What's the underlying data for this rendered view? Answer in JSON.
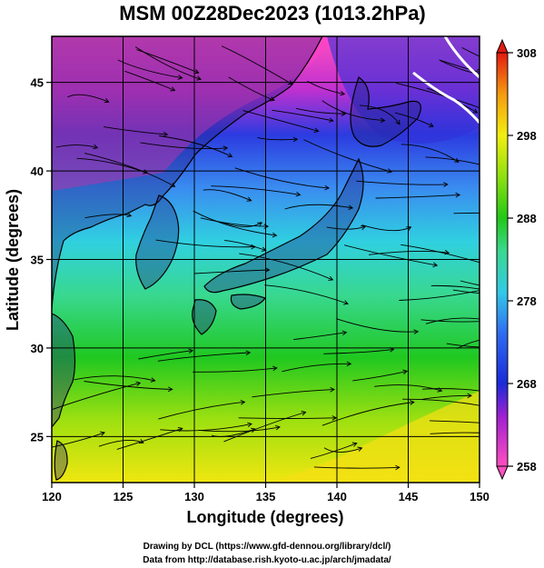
{
  "title": "MSM 00Z28Dec2023 (1013.2hPa)",
  "x_axis": {
    "label": "Longitude (degrees)",
    "ticks": [
      120,
      125,
      130,
      135,
      140,
      145,
      150
    ],
    "range": [
      120,
      150
    ]
  },
  "y_axis": {
    "label": "Latitude  (degrees)",
    "ticks": [
      25,
      30,
      35,
      40,
      45
    ],
    "range": [
      22.4,
      47.6
    ]
  },
  "colorbar": {
    "ticks": [
      258,
      268,
      278,
      288,
      298,
      308
    ],
    "range": [
      258,
      308
    ],
    "colors": [
      "#ff4fc0",
      "#b020d0",
      "#1a2bd8",
      "#2f6bf0",
      "#33c8e8",
      "#3ad890",
      "#22c818",
      "#8fe010",
      "#f2ee10",
      "#f59a10",
      "#e21a10"
    ]
  },
  "credits": {
    "line1": "Drawing by DCL (https://www.gfd-dennou.org/library/dcl/)",
    "line2": "Data from http://database.rish.kyoto-u.ac.jp/arch/jmadata/"
  },
  "map": {
    "land_color": "#1a1a7a",
    "streamline_color": "#000000",
    "grid_color": "#000000",
    "front_color": "#ffffff"
  }
}
